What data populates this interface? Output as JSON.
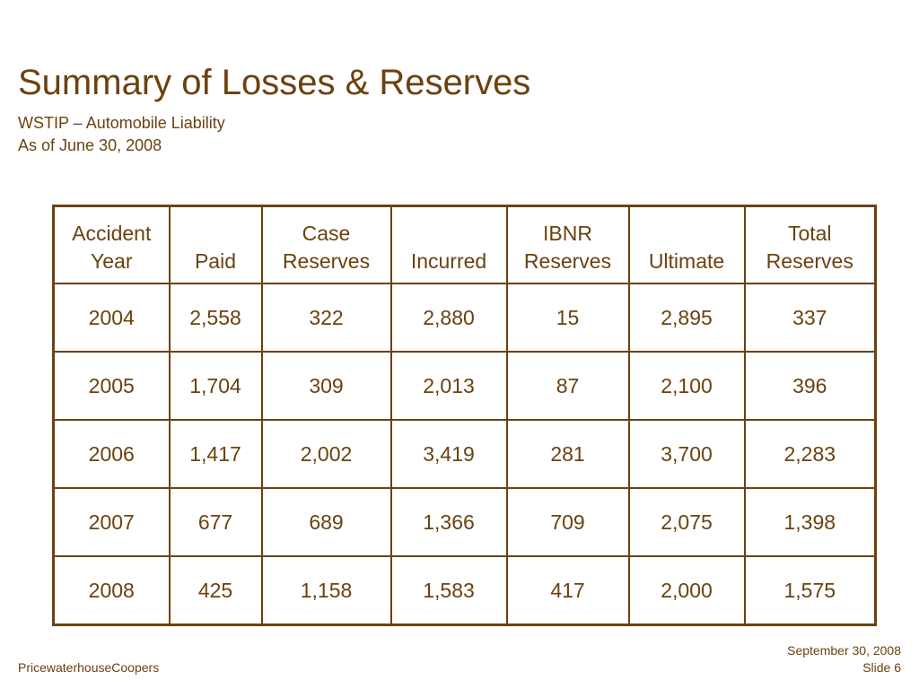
{
  "slide": {
    "title": "Summary of Losses & Reserves",
    "subtitle_line1": "WSTIP – Automobile Liability",
    "subtitle_line2": "As of June 30, 2008"
  },
  "table": {
    "headers": [
      [
        "Accident",
        "Year"
      ],
      [
        "",
        "Paid"
      ],
      [
        "Case",
        "Reserves"
      ],
      [
        "",
        "Incurred"
      ],
      [
        "IBNR",
        "Reserves"
      ],
      [
        "",
        "Ultimate"
      ],
      [
        "Total",
        "Reserves"
      ]
    ],
    "rows": [
      [
        "2004",
        "2,558",
        "322",
        "2,880",
        "15",
        "2,895",
        "337"
      ],
      [
        "2005",
        "1,704",
        "309",
        "2,013",
        "87",
        "2,100",
        "396"
      ],
      [
        "2006",
        "1,417",
        "2,002",
        "3,419",
        "281",
        "3,700",
        "2,283"
      ],
      [
        "2007",
        "677",
        "689",
        "1,366",
        "709",
        "2,075",
        "1,398"
      ],
      [
        "2008",
        "425",
        "1,158",
        "1,583",
        "417",
        "2,000",
        "1,575"
      ]
    ]
  },
  "footer": {
    "company": "PricewaterhouseCoopers",
    "date": "September 30, 2008",
    "slide_label": "Slide 6"
  },
  "colors": {
    "text": "#6b4210",
    "border": "#6b4210",
    "background": "#ffffff"
  }
}
